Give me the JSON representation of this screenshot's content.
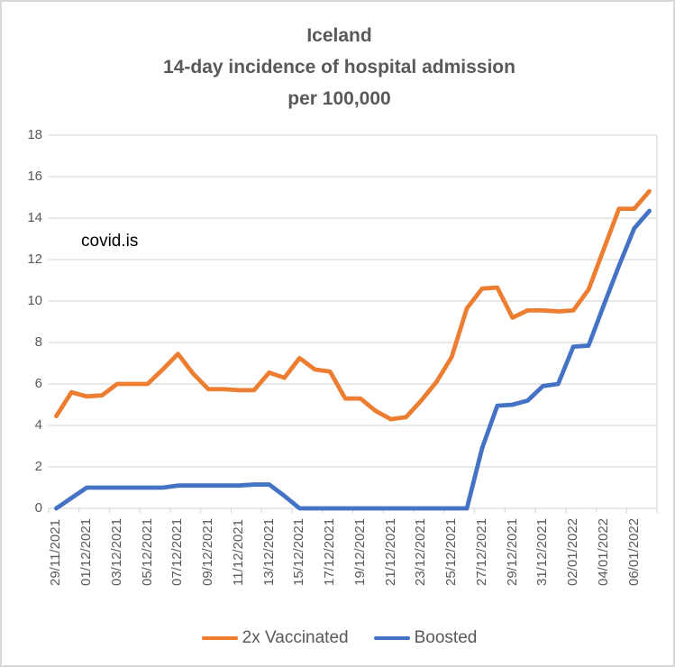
{
  "title": {
    "lines": [
      "Iceland",
      "14-day incidence of hospital admission",
      "per 100,000"
    ]
  },
  "annotation": "covid.is",
  "legend": [
    {
      "label": "2x Vaccinated",
      "color": "#ED7D31"
    },
    {
      "label": "Boosted",
      "color": "#4472C4"
    }
  ],
  "colors": {
    "gridline": "#D9D9D9",
    "axis": "#D9D9D9",
    "text": "#595959",
    "annotation_text": "#000000",
    "series_vaccinated": "#ED7D31",
    "series_boosted": "#4472C4"
  },
  "chart_data": {
    "type": "line",
    "title": "Iceland 14-day incidence of hospital admission per 100,000",
    "xlabel": "",
    "ylabel": "",
    "ylim": [
      0,
      18
    ],
    "yticks": [
      0,
      2,
      4,
      6,
      8,
      10,
      12,
      14,
      16,
      18
    ],
    "grid": true,
    "legend_position": "bottom",
    "x_label_rotation": 90,
    "x_label_every": 2,
    "x": [
      "29/11/2021",
      "30/11/2021",
      "01/12/2021",
      "02/12/2021",
      "03/12/2021",
      "04/12/2021",
      "05/12/2021",
      "06/12/2021",
      "07/12/2021",
      "08/12/2021",
      "09/12/2021",
      "10/12/2021",
      "11/12/2021",
      "12/12/2021",
      "13/12/2021",
      "14/12/2021",
      "15/12/2021",
      "16/12/2021",
      "17/12/2021",
      "18/12/2021",
      "19/12/2021",
      "20/12/2021",
      "21/12/2021",
      "22/12/2021",
      "23/12/2021",
      "24/12/2021",
      "25/12/2021",
      "26/12/2021",
      "27/12/2021",
      "28/12/2021",
      "29/12/2021",
      "30/12/2021",
      "31/12/2021",
      "01/01/2022",
      "02/01/2022",
      "03/01/2022",
      "04/01/2022",
      "05/01/2022",
      "06/01/2022",
      "07/01/2022"
    ],
    "series": [
      {
        "name": "2x Vaccinated",
        "color": "#ED7D31",
        "values": [
          4.45,
          5.6,
          5.4,
          5.45,
          6.0,
          6.0,
          6.0,
          6.7,
          7.45,
          6.5,
          5.75,
          5.75,
          5.7,
          5.7,
          6.55,
          6.3,
          7.25,
          6.7,
          6.6,
          5.3,
          5.3,
          4.7,
          4.3,
          4.4,
          5.2,
          6.1,
          7.3,
          9.65,
          10.6,
          10.65,
          9.2,
          9.55,
          9.55,
          9.5,
          9.55,
          10.55,
          12.5,
          14.45,
          14.45,
          15.3
        ]
      },
      {
        "name": "Boosted",
        "color": "#4472C4",
        "values": [
          0,
          0.5,
          1.0,
          1.0,
          1.0,
          1.0,
          1.0,
          1.0,
          1.1,
          1.1,
          1.1,
          1.1,
          1.1,
          1.15,
          1.15,
          0.6,
          0,
          0,
          0,
          0,
          0,
          0,
          0,
          0,
          0,
          0,
          0,
          0,
          2.9,
          4.95,
          5.0,
          5.2,
          5.9,
          6.0,
          7.8,
          7.85,
          9.8,
          11.7,
          13.5,
          14.35
        ]
      }
    ]
  }
}
